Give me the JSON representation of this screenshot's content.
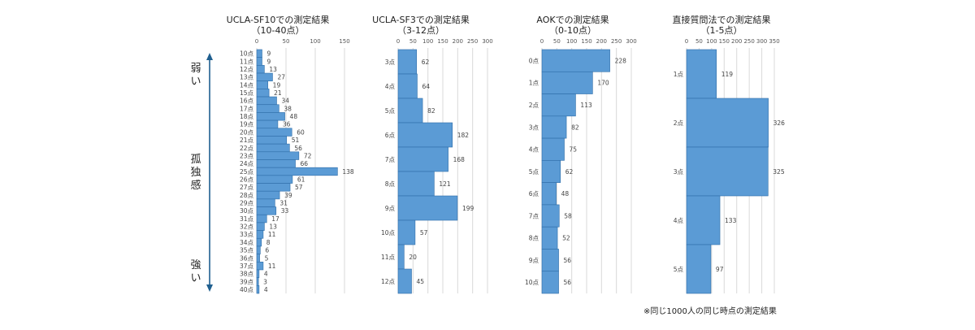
{
  "labels": {
    "weak": [
      "弱",
      "い"
    ],
    "loneliness": [
      "孤",
      "独",
      "感"
    ],
    "strong": [
      "強",
      "い"
    ]
  },
  "footnote": "※同じ1000人の同じ時点の測定結果",
  "colors": {
    "bar": "#5b9bd5",
    "bar_edge": "#2e6da8",
    "grid": "#d9d9d9",
    "arrow": "#1f5f8f"
  },
  "chart_data": [
    {
      "type": "bar",
      "orientation": "horizontal",
      "title": [
        "UCLA-SF10での測定結果",
        "（10-40点）"
      ],
      "xlim": [
        0,
        150
      ],
      "xticks": [
        0,
        50,
        100,
        150
      ],
      "categories": [
        "10点",
        "11点",
        "12点",
        "13点",
        "14点",
        "15点",
        "16点",
        "17点",
        "18点",
        "19点",
        "20点",
        "21点",
        "22点",
        "23点",
        "24点",
        "25点",
        "26点",
        "27点",
        "28点",
        "29点",
        "30点",
        "31点",
        "32点",
        "33点",
        "34点",
        "35点",
        "36点",
        "37点",
        "38点",
        "39点",
        "40点"
      ],
      "values": [
        9,
        9,
        13,
        27,
        19,
        21,
        34,
        38,
        48,
        36,
        60,
        51,
        56,
        72,
        66,
        138,
        61,
        57,
        39,
        31,
        33,
        17,
        13,
        11,
        8,
        6,
        5,
        11,
        4,
        3,
        4
      ]
    },
    {
      "type": "bar",
      "orientation": "horizontal",
      "title": [
        "UCLA-SF3での測定結果",
        "（3-12点）"
      ],
      "xlim": [
        0,
        300
      ],
      "xticks": [
        0,
        50,
        100,
        150,
        200,
        250,
        300
      ],
      "categories": [
        "3点",
        "4点",
        "5点",
        "6点",
        "7点",
        "8点",
        "9点",
        "10点",
        "11点",
        "12点"
      ],
      "values": [
        62,
        64,
        82,
        182,
        168,
        121,
        199,
        57,
        20,
        45
      ]
    },
    {
      "type": "bar",
      "orientation": "horizontal",
      "title": [
        "AOKでの測定結果",
        "（0-10点）"
      ],
      "xlim": [
        0,
        300
      ],
      "xticks": [
        0,
        50,
        100,
        150,
        200,
        250,
        300
      ],
      "categories": [
        "0点",
        "1点",
        "2点",
        "3点",
        "4点",
        "5点",
        "6点",
        "7点",
        "8点",
        "9点",
        "10点"
      ],
      "values": [
        228,
        170,
        113,
        82,
        75,
        62,
        48,
        58,
        52,
        56,
        56
      ]
    },
    {
      "type": "bar",
      "orientation": "horizontal",
      "title": [
        "直接質問法での測定結果",
        "（1-5点）"
      ],
      "xlim": [
        0,
        350
      ],
      "xticks": [
        0,
        50,
        100,
        150,
        200,
        250,
        300,
        350
      ],
      "categories": [
        "1点",
        "2点",
        "3点",
        "4点",
        "5点"
      ],
      "values": [
        119,
        326,
        325,
        133,
        97
      ]
    }
  ]
}
